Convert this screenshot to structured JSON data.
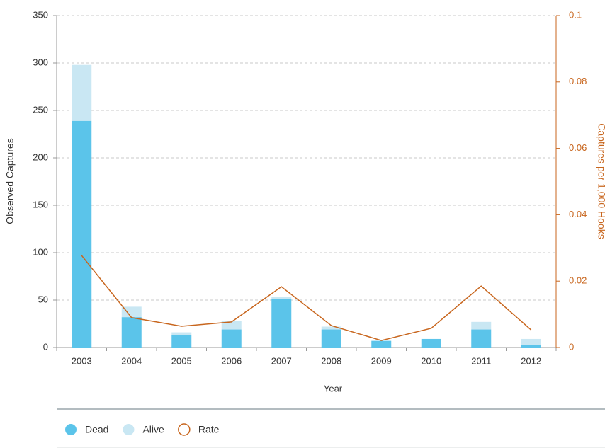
{
  "chart_data": {
    "type": "bar",
    "stacked": true,
    "x_label": "Year",
    "y_label": "Observed Captures",
    "y2_label": "Captures per 1,000 Hooks",
    "categories": [
      "2003",
      "2004",
      "2005",
      "2006",
      "2007",
      "2008",
      "2009",
      "2010",
      "2011",
      "2012"
    ],
    "series": [
      {
        "name": "Dead",
        "color": "#5bc4ea",
        "values": [
          239,
          32,
          13,
          19,
          51,
          19,
          7,
          9,
          19,
          3
        ]
      },
      {
        "name": "Alive",
        "color": "#c9e7f3",
        "values": [
          59,
          11,
          3,
          9,
          2,
          3,
          0,
          0,
          8,
          6
        ]
      },
      {
        "name": "Rate",
        "color": "#c8661e",
        "axis": "y2",
        "values": [
          0.0277,
          0.009,
          0.0064,
          0.0077,
          0.0183,
          0.0066,
          0.0021,
          0.0058,
          0.0185,
          0.0053
        ]
      }
    ],
    "ylim": [
      0,
      350
    ],
    "yticks": [
      0,
      50,
      100,
      150,
      200,
      250,
      300,
      350
    ],
    "y2lim": [
      0,
      0.1
    ],
    "y2ticks": [
      0,
      0.02,
      0.04,
      0.06,
      0.08,
      0.1
    ],
    "grid": true,
    "legend": "bottom"
  }
}
